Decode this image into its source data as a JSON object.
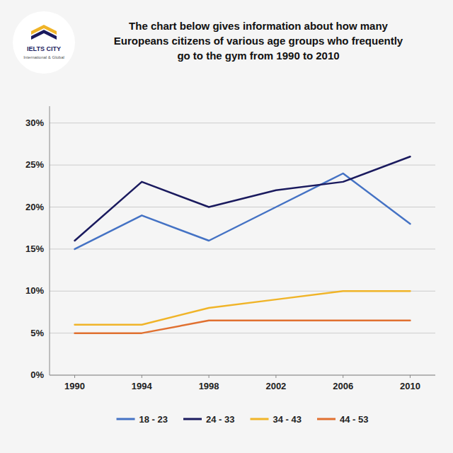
{
  "chart_data": {
    "type": "line",
    "title": "The chart below gives information about how many\nEuropeans citizens of various age groups who frequently\ngo to the gym from 1990 to 2010",
    "annotations": [
      "IELTS CITY",
      "International & Global"
    ],
    "x": [
      1990,
      1994,
      1998,
      2002,
      2006,
      2010
    ],
    "series": [
      {
        "name": "18 - 23",
        "color": "#4472C4",
        "values": [
          15,
          19,
          16,
          20,
          24,
          18
        ]
      },
      {
        "name": "24 - 33",
        "color": "#1a1a5e",
        "values": [
          16,
          23,
          20,
          22,
          23,
          26
        ]
      },
      {
        "name": "34 - 43",
        "color": "#F0B428",
        "values": [
          6,
          6,
          8,
          9,
          10,
          10
        ]
      },
      {
        "name": "44 - 53",
        "color": "#E07030",
        "values": [
          5,
          5,
          6.5,
          6.5,
          6.5,
          6.5
        ]
      }
    ],
    "xlim": [
      1988.5,
      2011.5
    ],
    "xticks": [
      1990,
      1994,
      1998,
      2002,
      2006,
      2010
    ],
    "ylim": [
      0,
      32
    ],
    "yticks": [
      {
        "value": 0,
        "label": "0%"
      },
      {
        "value": 5,
        "label": "5%"
      },
      {
        "value": 10,
        "label": "10%"
      },
      {
        "value": 15,
        "label": "15%"
      },
      {
        "value": 20,
        "label": "20%"
      },
      {
        "value": 25,
        "label": "25%"
      },
      {
        "value": 30,
        "label": "30%"
      }
    ],
    "grid": true,
    "legend": "bottom"
  }
}
